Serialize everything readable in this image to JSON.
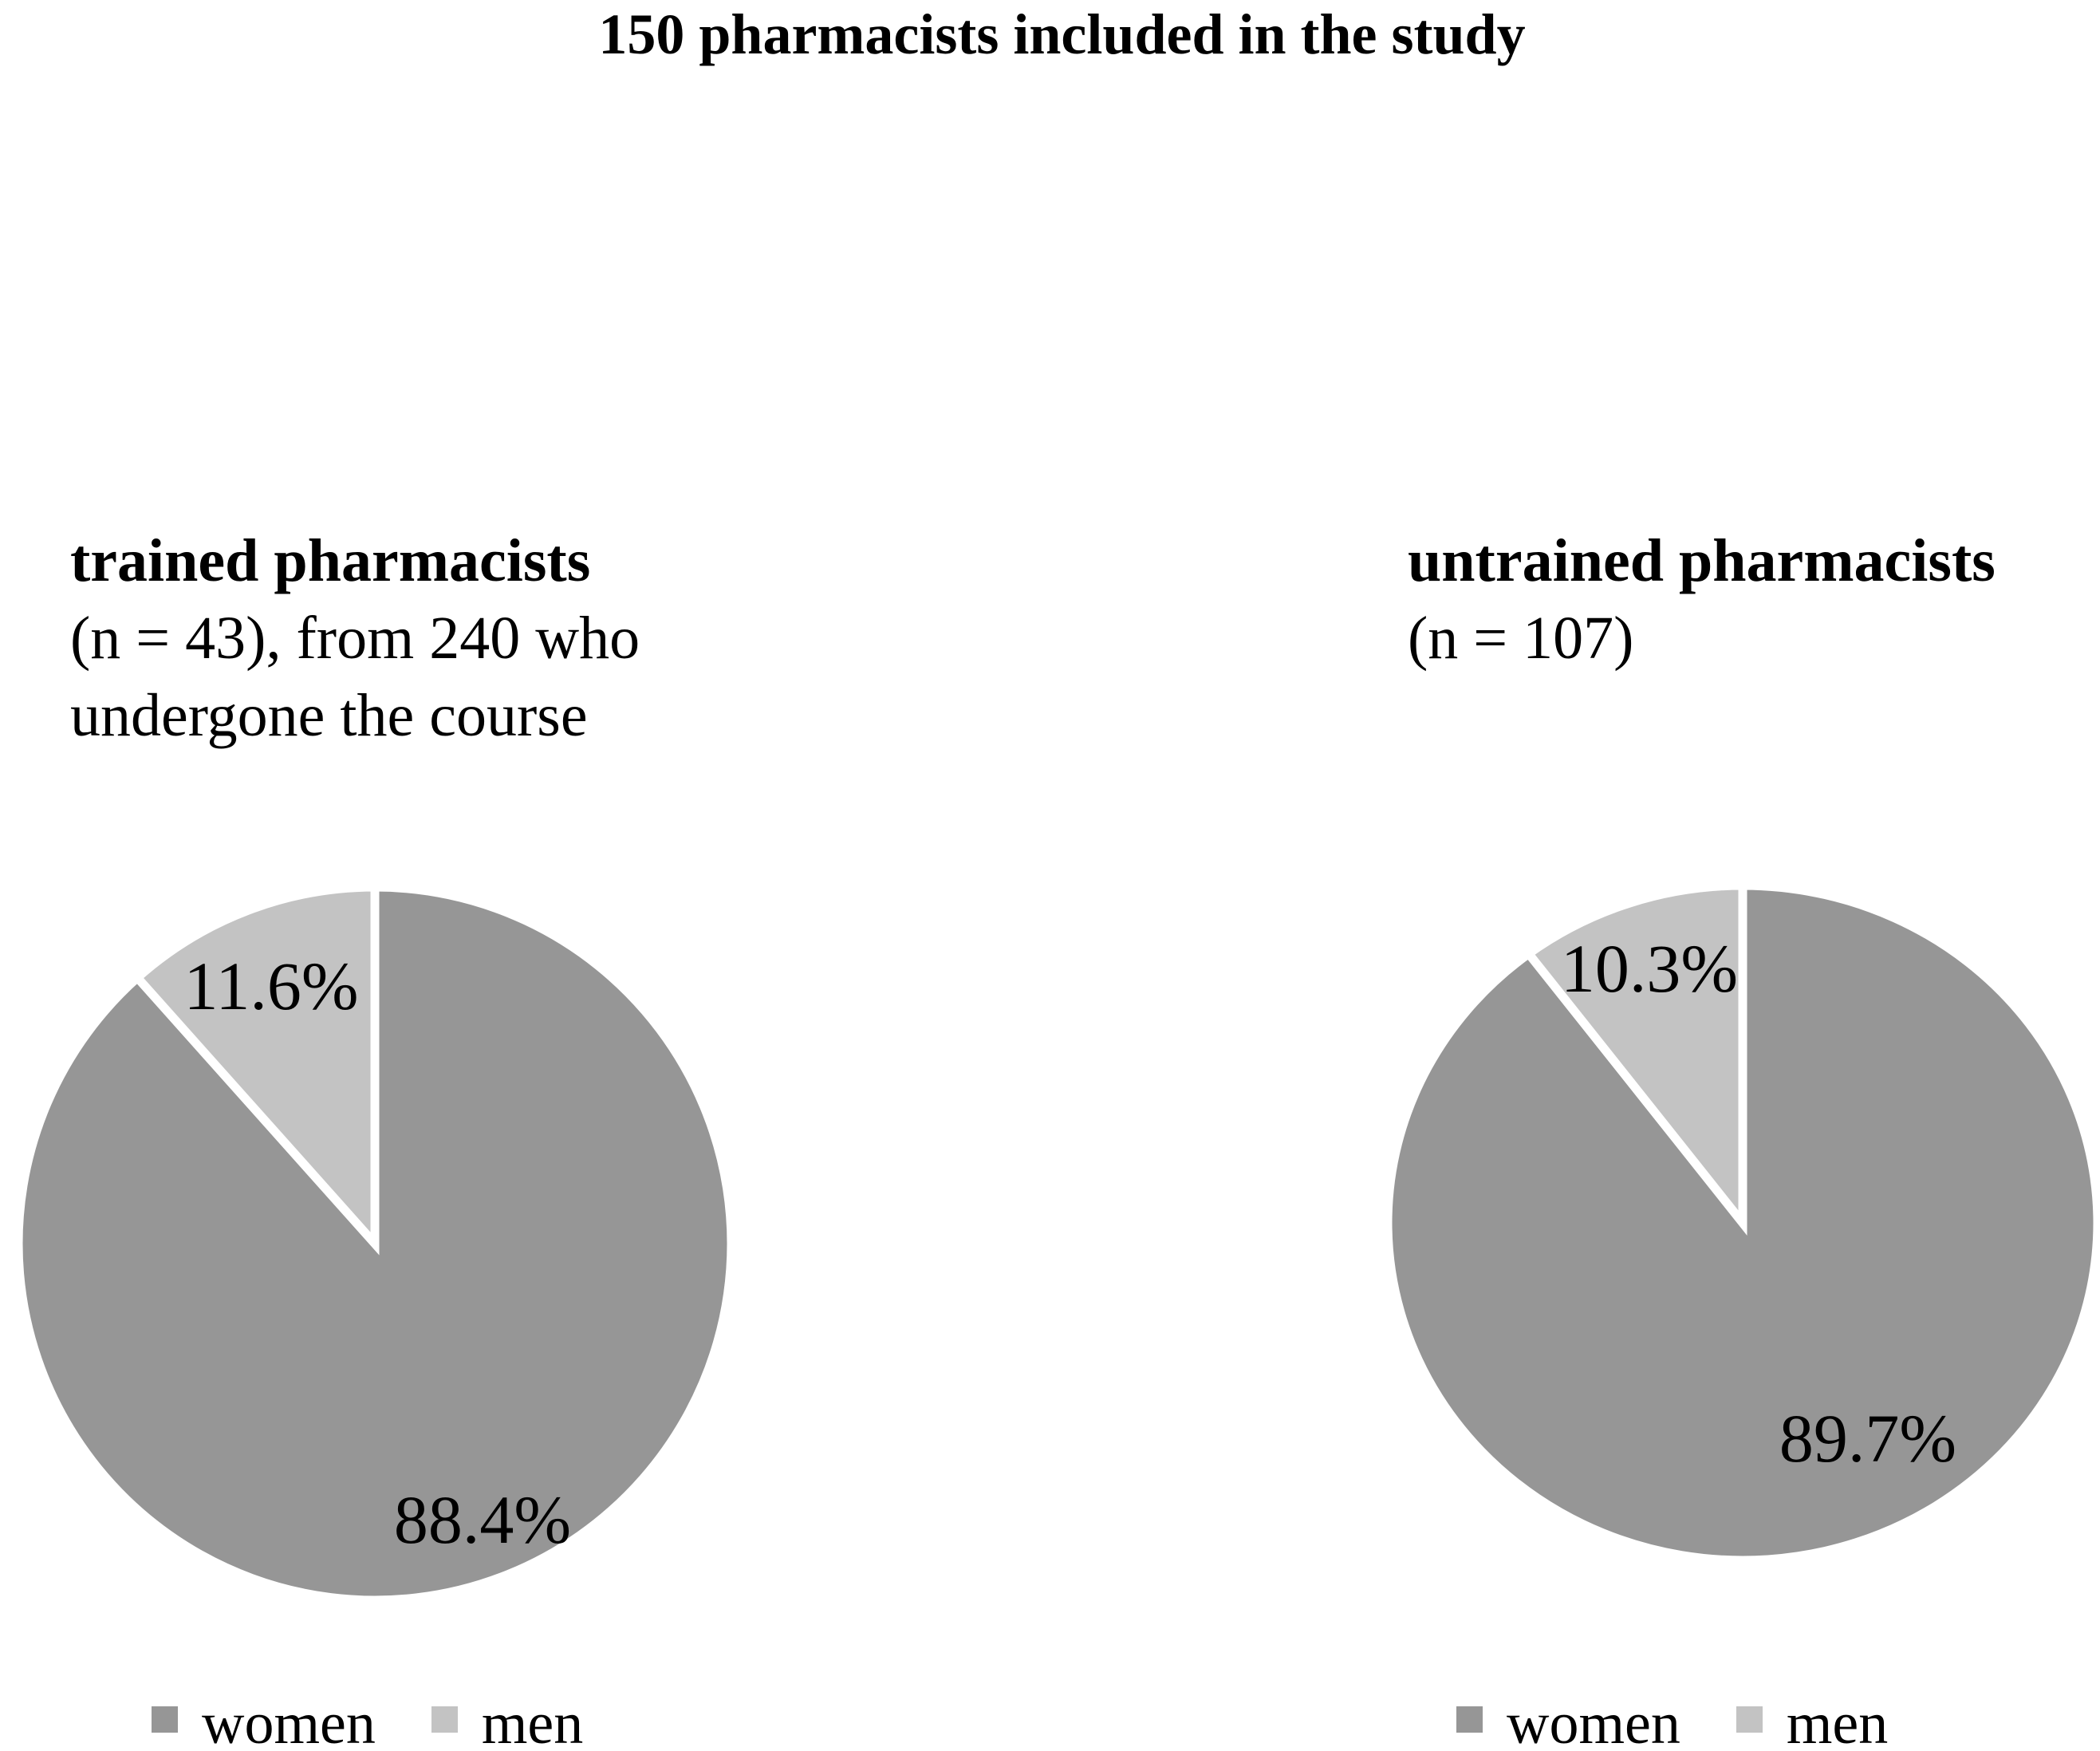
{
  "title": "150 pharmacists included in the study",
  "colors": {
    "women": "#969696",
    "men": "#C3C3C3",
    "slice_border": "#FFFFFF",
    "text": "#000000",
    "background": "#FFFFFF"
  },
  "chart_data": [
    {
      "type": "pie",
      "name": "trained-pharmacists-pie",
      "subtitle_bold": "trained pharmacists",
      "subtitle_lines": [
        "(n = 43), from 240 who",
        "undergone the course"
      ],
      "categories": [
        "women",
        "men"
      ],
      "values": [
        88.4,
        11.6
      ],
      "labels": [
        "88.4%",
        "11.6%"
      ],
      "colors": [
        "#969696",
        "#C3C3C3"
      ],
      "legend": [
        "women",
        "men"
      ],
      "legend_position": "bottom",
      "start_angle_deg": 0,
      "direction": "clockwise",
      "slice_border_color": "#FFFFFF"
    },
    {
      "type": "pie",
      "name": "untrained-pharmacists-pie",
      "subtitle_bold": "untrained pharmacists",
      "subtitle_lines": [
        "(n = 107)"
      ],
      "categories": [
        "women",
        "men"
      ],
      "values": [
        89.7,
        10.3
      ],
      "labels": [
        "89.7%",
        "10.3%"
      ],
      "colors": [
        "#969696",
        "#C3C3C3"
      ],
      "legend": [
        "women",
        "men"
      ],
      "legend_position": "bottom",
      "start_angle_deg": 0,
      "direction": "clockwise",
      "slice_border_color": "#FFFFFF"
    }
  ]
}
